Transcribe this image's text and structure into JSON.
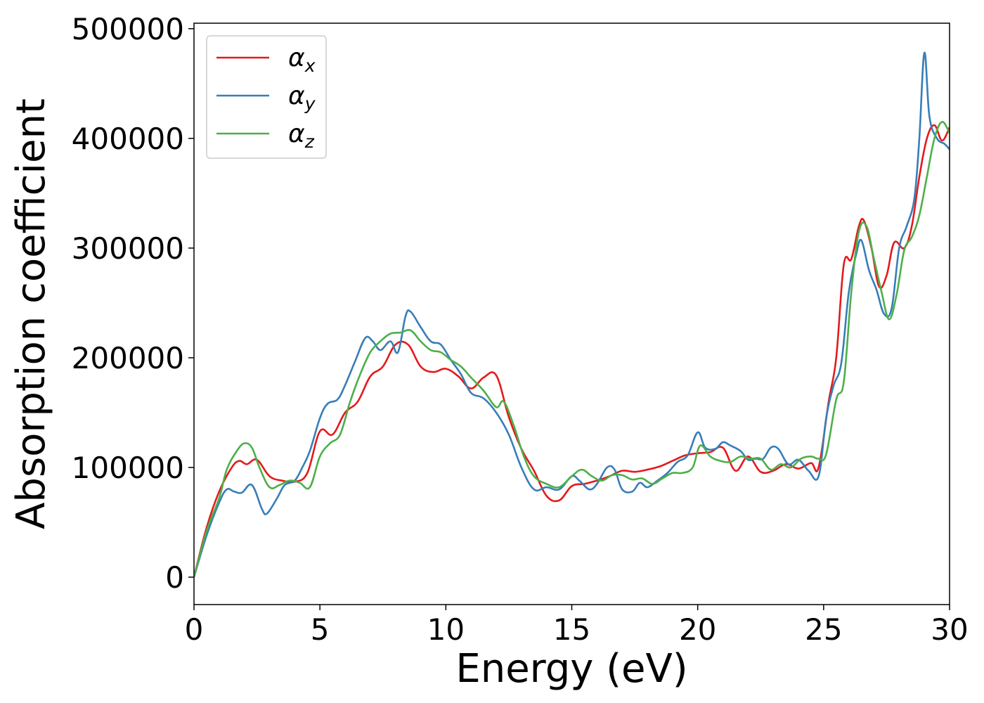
{
  "chart_data": {
    "type": "line",
    "xlabel": "Energy (eV)",
    "ylabel": "Absorption coefficient",
    "xlim": [
      0,
      30
    ],
    "ylim": [
      -25000,
      505000
    ],
    "xticks": [
      0,
      5,
      10,
      15,
      20,
      25,
      30
    ],
    "yticks": [
      0,
      100000,
      200000,
      300000,
      400000,
      500000
    ],
    "grid": false,
    "legend_position": "top-left",
    "series": [
      {
        "name": "αx",
        "label_base": "α",
        "label_sub": "x",
        "color": "#e41a1c",
        "x": [
          0,
          0.5,
          1,
          1.5,
          1.8,
          2.1,
          2.5,
          3,
          3.5,
          4,
          4.5,
          5,
          5.5,
          6,
          6.5,
          7,
          7.5,
          8,
          8.5,
          9,
          9.5,
          10,
          10.5,
          11,
          11.5,
          12,
          12.5,
          13,
          13.5,
          14,
          14.5,
          15,
          15.5,
          16,
          16.5,
          17,
          17.5,
          18,
          18.5,
          19,
          19.5,
          20,
          20.5,
          21,
          21.5,
          22,
          22.5,
          23,
          23.5,
          24,
          24.5,
          24.8,
          25.2,
          25.5,
          25.8,
          26.1,
          26.4,
          26.6,
          26.9,
          27.2,
          27.5,
          27.8,
          28.2,
          28.5,
          28.8,
          29.1,
          29.4,
          29.7,
          30
        ],
        "y": [
          0,
          45000,
          78000,
          100000,
          106000,
          103000,
          107000,
          92000,
          88000,
          87000,
          95000,
          133000,
          130000,
          150000,
          160000,
          183000,
          192000,
          212000,
          212000,
          192000,
          187000,
          190000,
          183000,
          172000,
          182000,
          184000,
          146000,
          117000,
          97000,
          74000,
          70000,
          83000,
          85000,
          88000,
          92000,
          97000,
          96000,
          98000,
          101000,
          106000,
          111000,
          113000,
          114000,
          118000,
          97000,
          110000,
          96000,
          97000,
          103000,
          99000,
          104000,
          100000,
          160000,
          200000,
          285000,
          290000,
          320000,
          325000,
          300000,
          265000,
          275000,
          305000,
          300000,
          320000,
          365000,
          400000,
          412000,
          398000,
          410000
        ]
      },
      {
        "name": "αy",
        "label_base": "α",
        "label_sub": "y",
        "color": "#377eb8",
        "x": [
          0,
          0.5,
          1,
          1.3,
          1.6,
          1.9,
          2.3,
          2.7,
          2.9,
          3.3,
          3.6,
          4,
          4.3,
          4.6,
          5,
          5.3,
          5.7,
          6,
          6.4,
          6.8,
          7.1,
          7.4,
          7.8,
          8.1,
          8.4,
          8.6,
          9,
          9.4,
          9.8,
          10.2,
          10.6,
          11,
          11.5,
          12,
          12.5,
          13,
          13.5,
          14,
          14.5,
          15,
          15.3,
          15.7,
          16,
          16.4,
          16.7,
          17,
          17.4,
          17.7,
          18,
          18.4,
          18.8,
          19.2,
          19.6,
          20,
          20.3,
          20.7,
          21,
          21.3,
          21.7,
          22,
          22.3,
          22.6,
          22.9,
          23.2,
          23.6,
          24,
          24.4,
          24.8,
          25.1,
          25.4,
          25.7,
          26,
          26.3,
          26.5,
          26.8,
          27.1,
          27.4,
          27.7,
          28,
          28.3,
          28.6,
          28.8,
          29,
          29.2,
          29.5,
          29.8,
          30
        ],
        "y": [
          0,
          38000,
          68000,
          80000,
          78000,
          77000,
          84000,
          62000,
          58000,
          72000,
          84000,
          88000,
          100000,
          115000,
          145000,
          158000,
          162000,
          175000,
          197000,
          218000,
          215000,
          207000,
          215000,
          205000,
          238000,
          242000,
          228000,
          215000,
          212000,
          198000,
          185000,
          168000,
          163000,
          150000,
          130000,
          100000,
          80000,
          82000,
          80000,
          92000,
          88000,
          80000,
          85000,
          100000,
          98000,
          80000,
          78000,
          86000,
          82000,
          88000,
          95000,
          105000,
          111000,
          132000,
          118000,
          117000,
          123000,
          120000,
          115000,
          107000,
          108000,
          108000,
          118000,
          117000,
          103000,
          107000,
          97000,
          92000,
          145000,
          175000,
          195000,
          260000,
          295000,
          307000,
          280000,
          262000,
          240000,
          245000,
          300000,
          320000,
          345000,
          400000,
          478000,
          420000,
          400000,
          395000,
          390000
        ]
      },
      {
        "name": "αz",
        "label_base": "α",
        "label_sub": "z",
        "color": "#4daf4a",
        "x": [
          0,
          0.5,
          1,
          1.3,
          1.7,
          2,
          2.3,
          2.6,
          3,
          3.4,
          3.8,
          4.2,
          4.6,
          5,
          5.4,
          5.8,
          6.2,
          6.6,
          7,
          7.4,
          7.8,
          8.2,
          8.6,
          9,
          9.4,
          9.8,
          10.2,
          10.6,
          11,
          11.5,
          12,
          12.3,
          12.7,
          13.1,
          13.5,
          14,
          14.5,
          15,
          15.4,
          15.8,
          16.2,
          16.6,
          17,
          17.4,
          17.8,
          18.2,
          18.6,
          19,
          19.4,
          19.8,
          20.1,
          20.5,
          20.9,
          21.3,
          21.7,
          22.1,
          22.5,
          22.9,
          23.3,
          23.7,
          24.1,
          24.5,
          24.8,
          25.1,
          25.5,
          25.8,
          26.1,
          26.4,
          26.7,
          27,
          27.3,
          27.6,
          27.9,
          28.2,
          28.5,
          28.8,
          29.1,
          29.4,
          29.7,
          30
        ],
        "y": [
          0,
          42000,
          72000,
          98000,
          115000,
          122000,
          118000,
          100000,
          82000,
          84000,
          88000,
          86000,
          82000,
          110000,
          122000,
          130000,
          160000,
          185000,
          205000,
          215000,
          222000,
          223000,
          225000,
          215000,
          207000,
          205000,
          198000,
          192000,
          182000,
          170000,
          155000,
          160000,
          138000,
          110000,
          92000,
          85000,
          82000,
          92000,
          98000,
          92000,
          88000,
          93000,
          93000,
          89000,
          90000,
          85000,
          90000,
          95000,
          95000,
          100000,
          120000,
          110000,
          106000,
          105000,
          110000,
          108000,
          108000,
          98000,
          103000,
          100000,
          108000,
          110000,
          108000,
          112000,
          162000,
          178000,
          260000,
          315000,
          320000,
          290000,
          260000,
          235000,
          258000,
          298000,
          310000,
          330000,
          365000,
          400000,
          415000,
          405000
        ]
      }
    ]
  }
}
